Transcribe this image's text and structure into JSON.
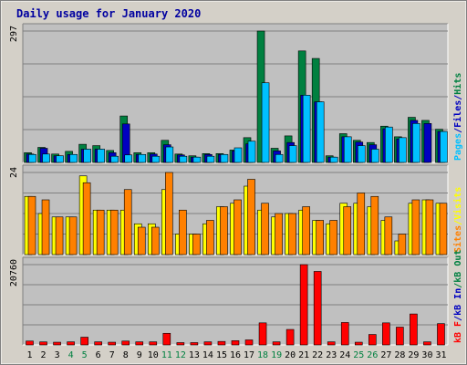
{
  "chart_data": {
    "type": "bar",
    "title": "Daily usage for January 2020",
    "days": [
      "1",
      "2",
      "3",
      "4",
      "5",
      "6",
      "7",
      "8",
      "9",
      "10",
      "11",
      "12",
      "13",
      "14",
      "15",
      "16",
      "17",
      "18",
      "19",
      "20",
      "21",
      "22",
      "23",
      "24",
      "25",
      "26",
      "27",
      "28",
      "29",
      "30",
      "31"
    ],
    "weekend_days": [
      4,
      5,
      11,
      12,
      18,
      19,
      25,
      26
    ],
    "colors": {
      "hits": "#008040",
      "files": "#0000c0",
      "pages": "#00c0ff",
      "visits": "#ffff00",
      "sites": "#ff8000",
      "kb_out": "#008040",
      "kb_in": "#0000c0",
      "kb_f": "#ff0000",
      "day_label": "#000000",
      "weekend_label": "#008040",
      "title": "#0000a0"
    },
    "panels": [
      {
        "name": "hits_files_pages",
        "ymax": 297,
        "ymax_label": "297",
        "right_labels": [
          {
            "text": "Pages",
            "color": "#00c0ff"
          },
          {
            "text": "/",
            "color": "#0000c0"
          },
          {
            "text": "Files",
            "color": "#0000c0"
          },
          {
            "text": "/",
            "color": "#0000c0"
          },
          {
            "text": "Hits",
            "color": "#008040"
          }
        ],
        "series": [
          {
            "name": "Hits",
            "values": [
              22,
              34,
              19,
              25,
              41,
              38,
              27,
              105,
              22,
              22,
              50,
              19,
              15,
              20,
              20,
              28,
              56,
              297,
              32,
              60,
              252,
              235,
              15,
              65,
              50,
              45,
              82,
              58,
              102,
              95,
              75
            ]
          },
          {
            "name": "Files",
            "values": [
              19,
              32,
              15,
              18,
              30,
              30,
              22,
              87,
              18,
              19,
              40,
              17,
              12,
              18,
              18,
              26,
              42,
              0,
              26,
              45,
              152,
              137,
              12,
              58,
              46,
              40,
              76,
              53,
              95,
              88,
              70
            ]
          },
          {
            "name": "Pages",
            "values": [
              18,
              19,
              15,
              18,
              30,
              30,
              14,
              17,
              18,
              14,
              35,
              14,
              12,
              14,
              18,
              33,
              48,
              180,
              18,
              38,
              152,
              137,
              12,
              58,
              38,
              30,
              80,
              56,
              88,
              0,
              70
            ]
          }
        ]
      },
      {
        "name": "visits_sites",
        "ymax": 24,
        "ymax_label": "24",
        "right_labels": [
          {
            "text": "Sites",
            "color": "#ff8000"
          },
          {
            "text": "/",
            "color": "#ffff00"
          },
          {
            "text": "Visits",
            "color": "#ffff00"
          }
        ],
        "series": [
          {
            "name": "Visits",
            "values": [
              17,
              12,
              11,
              11,
              23,
              13,
              13,
              13,
              9,
              9,
              19,
              6,
              6,
              9,
              14,
              15,
              20,
              13,
              11,
              12,
              13,
              10,
              9,
              15,
              15,
              14,
              10,
              4,
              15,
              16,
              15
            ]
          },
          {
            "name": "Sites",
            "values": [
              17,
              16,
              11,
              11,
              21,
              13,
              13,
              19,
              8,
              8,
              24,
              13,
              6,
              10,
              14,
              16,
              22,
              15,
              12,
              12,
              14,
              10,
              10,
              14,
              18,
              17,
              11,
              6,
              16,
              16,
              15
            ]
          }
        ]
      },
      {
        "name": "kbytes",
        "ymax": 20760,
        "ymax_label": "20760",
        "right_labels": [
          {
            "text": "kB F",
            "color": "#ff0000"
          },
          {
            "text": "/",
            "color": "#0000c0"
          },
          {
            "text": "kB In",
            "color": "#0000c0"
          },
          {
            "text": "/",
            "color": "#008040"
          },
          {
            "text": "kB Out",
            "color": "#008040"
          }
        ],
        "series": [
          {
            "name": "kB F",
            "values": [
              1000,
              780,
              700,
              800,
              2000,
              800,
              700,
              1000,
              800,
              800,
              3000,
              600,
              600,
              800,
              900,
              1100,
              1300,
              5700,
              800,
              4000,
              20760,
              19000,
              800,
              5800,
              700,
              2700,
              5700,
              4600,
              8000,
              800,
              5500
            ]
          }
        ]
      }
    ]
  }
}
